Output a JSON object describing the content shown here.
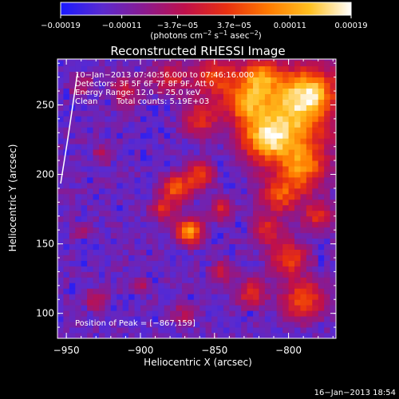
{
  "chart_data": {
    "type": "heatmap",
    "title": "Reconstructed RHESSI Image",
    "xlabel": "Heliocentric X (arcsec)",
    "ylabel": "Heliocentric Y (arcsec)",
    "xlim": [
      -956,
      -768
    ],
    "ylim": [
      82,
      283
    ],
    "x_ticks": [
      {
        "value": -950,
        "label": "−950"
      },
      {
        "value": -900,
        "label": "−900"
      },
      {
        "value": -850,
        "label": "−850"
      },
      {
        "value": -800,
        "label": "−800"
      }
    ],
    "y_ticks": [
      {
        "value": 100,
        "label": "100"
      },
      {
        "value": 150,
        "label": "150"
      },
      {
        "value": 200,
        "label": "200"
      },
      {
        "value": 250,
        "label": "250"
      }
    ],
    "colorbar": {
      "min": -0.00019,
      "max": 0.00019,
      "tick_labels": [
        {
          "value": -0.00019,
          "label": "−0.00019"
        },
        {
          "value": -0.00011,
          "label": "−0.00011"
        },
        {
          "value": -3.7e-05,
          "label": "−3.7e−05"
        },
        {
          "value": 3.7e-05,
          "label": "3.7e−05"
        },
        {
          "value": 0.00011,
          "label": "0.00011"
        },
        {
          "value": 0.00019,
          "label": "0.00019"
        }
      ],
      "unit_main": "(photons cm",
      "unit_exp1": "−2",
      "unit_mid": " s",
      "unit_exp2": "−1",
      "unit_mid2": " asec",
      "unit_exp3": "−2",
      "unit_end": ")",
      "colormap": [
        "#1a1aff",
        "#5a2ad0",
        "#8a1a90",
        "#c0104a",
        "#e83010",
        "#ff7a00",
        "#ffc020",
        "#ffffff"
      ]
    },
    "annotations": {
      "time_range": "10−Jan−2013 07:40:56.000 to 07:46:16.000",
      "detectors": "Detectors: 3F 5F 6F 7F 8F 9F, Att 0",
      "energy": "Energy Range: 12.0 − 25.0 keV",
      "method": "Clean",
      "counts": "Total counts: 5.19E+03",
      "peak": "Position of Peak = [−867,159]"
    },
    "peak": {
      "x": -867,
      "y": 159
    },
    "grid": false,
    "legend": "colorbar-top"
  },
  "footer": {
    "timestamp": "16−Jan−2013 18:54"
  }
}
